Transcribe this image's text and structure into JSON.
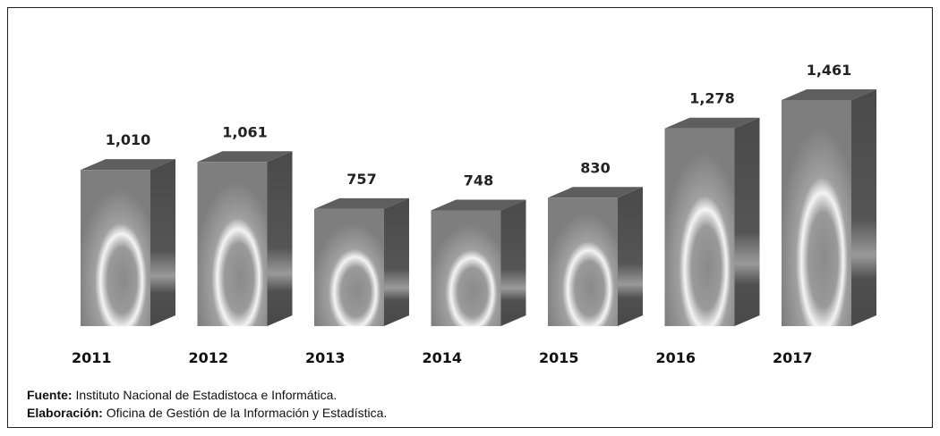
{
  "chart_data": {
    "type": "bar3d",
    "categories": [
      "2011",
      "2012",
      "2013",
      "2014",
      "2015",
      "2016",
      "2017"
    ],
    "values": [
      1010,
      1061,
      757,
      748,
      830,
      1278,
      1461
    ],
    "value_labels": [
      "1,010",
      "1,061",
      "757",
      "748",
      "830",
      "1,278",
      "1,461"
    ],
    "color": "#8a8a8a",
    "notes": [
      {
        "label": "Fuente:",
        "text": "Instituto Nacional de Estadistoca e Informática."
      },
      {
        "label": "Elaboración:",
        "text": "Oficina de Gestión de la Información y Estadística."
      }
    ]
  }
}
